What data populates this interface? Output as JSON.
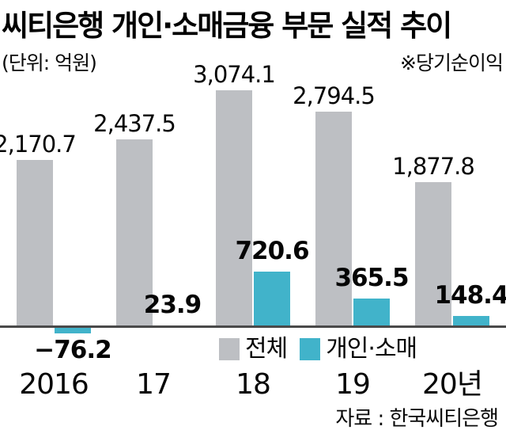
{
  "title": "씨티은행 개인·소매금융 부문 실적 추이",
  "unit_note": "(단위: 억원)",
  "metric_note": "※당기순이익",
  "source": "자료 : 한국씨티은행",
  "colors": {
    "total_bar": "#bdbfc3",
    "retail_bar": "#41b3ca",
    "axis_line": "#4a4a4a",
    "text": "#000000",
    "background": "#ffffff"
  },
  "legend": {
    "position": "bottom",
    "items": [
      {
        "label": "전체",
        "color": "#bdbfc3"
      },
      {
        "label": "개인·소매",
        "color": "#41b3ca"
      }
    ]
  },
  "chart_data": {
    "type": "bar",
    "title": "씨티은행 개인·소매금융 부문 실적 추이",
    "subtitle": "※당기순이익",
    "unit": "억원",
    "categories": [
      "2016",
      "17",
      "18",
      "19",
      "20년"
    ],
    "series": [
      {
        "name": "전체",
        "color": "#bdbfc3",
        "values": [
          2170.7,
          2437.5,
          3074.1,
          2794.5,
          1877.8
        ],
        "labels": [
          "2,170.7",
          "2,437.5",
          "3,074.1",
          "2,794.5",
          "1,877.8"
        ]
      },
      {
        "name": "개인·소매",
        "color": "#41b3ca",
        "values": [
          -76.2,
          23.9,
          720.6,
          365.5,
          148.4
        ],
        "labels": [
          "−76.2",
          "23.9",
          "720.6",
          "365.5",
          "148.4"
        ]
      }
    ],
    "ylim": [
      -100,
      3200
    ],
    "grid": false,
    "legend_position": "bottom",
    "source": "자료 : 한국씨티은행"
  }
}
